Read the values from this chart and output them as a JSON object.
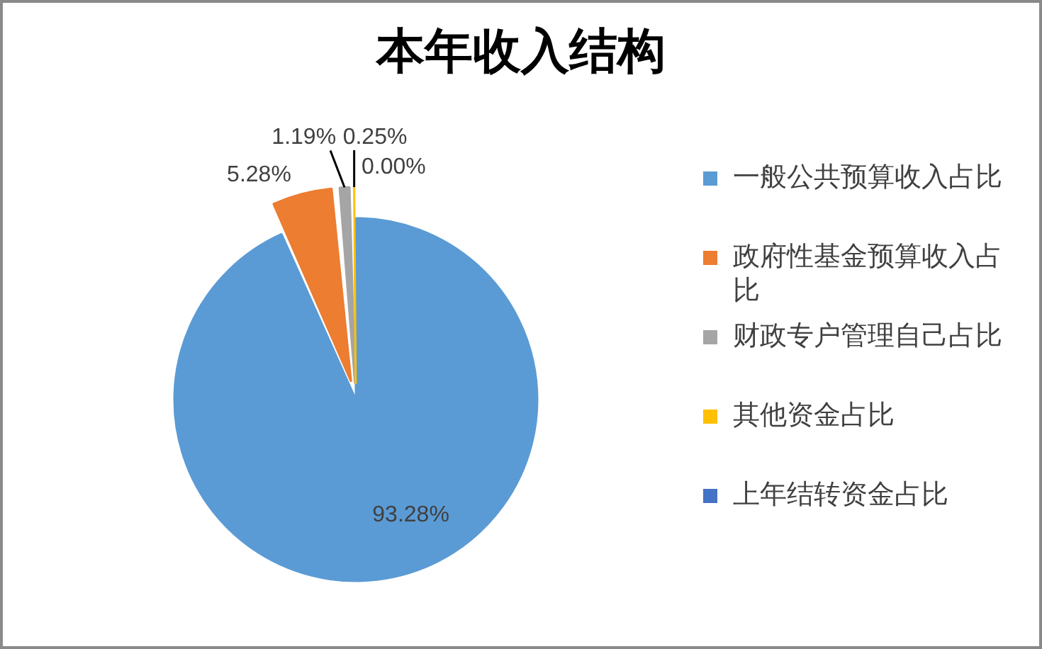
{
  "chart_data": {
    "type": "pie",
    "title": "本年收入结构",
    "categories": [
      "一般公共预算收入占比",
      "政府性基金预算收入占比",
      "财政专户管理自己占比",
      "其他资金占比",
      "上年结转资金占比"
    ],
    "values": [
      93.28,
      5.28,
      1.19,
      0.25,
      0
    ],
    "colors": [
      "#5b9bd5",
      "#ed7d31",
      "#a5a5a5",
      "#ffc000",
      "#4472c4"
    ],
    "value_labels": [
      "93.28%",
      "5.28%",
      "1.19%",
      "0.25%",
      "0.00%"
    ],
    "legend": "right"
  }
}
